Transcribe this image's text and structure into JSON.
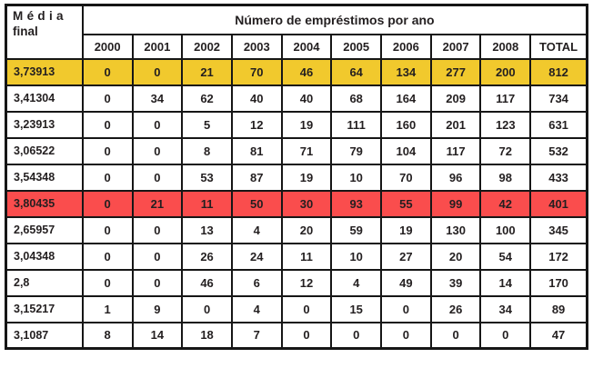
{
  "table": {
    "corner_header": {
      "line1": "Média",
      "line2": "final"
    },
    "group_header": "Número de empréstimos por ano",
    "year_headers": [
      "2000",
      "2001",
      "2002",
      "2003",
      "2004",
      "2005",
      "2006",
      "2007",
      "2008"
    ],
    "total_header": "TOTAL",
    "rows": [
      {
        "media": "3,73913",
        "values": [
          0,
          0,
          21,
          70,
          46,
          64,
          134,
          277,
          200
        ],
        "total": 812,
        "highlight": "yellow"
      },
      {
        "media": "3,41304",
        "values": [
          0,
          34,
          62,
          40,
          40,
          68,
          164,
          209,
          117
        ],
        "total": 734,
        "highlight": "none"
      },
      {
        "media": "3,23913",
        "values": [
          0,
          0,
          5,
          12,
          19,
          111,
          160,
          201,
          123
        ],
        "total": 631,
        "highlight": "none"
      },
      {
        "media": "3,06522",
        "values": [
          0,
          0,
          8,
          81,
          71,
          79,
          104,
          117,
          72
        ],
        "total": 532,
        "highlight": "none"
      },
      {
        "media": "3,54348",
        "values": [
          0,
          0,
          53,
          87,
          19,
          10,
          70,
          96,
          98
        ],
        "total": 433,
        "highlight": "none"
      },
      {
        "media": "3,80435",
        "values": [
          0,
          21,
          11,
          50,
          30,
          93,
          55,
          99,
          42
        ],
        "total": 401,
        "highlight": "red"
      },
      {
        "media": "2,65957",
        "values": [
          0,
          0,
          13,
          4,
          20,
          59,
          19,
          130,
          100
        ],
        "total": 345,
        "highlight": "none"
      },
      {
        "media": "3,04348",
        "values": [
          0,
          0,
          26,
          24,
          11,
          10,
          27,
          20,
          54
        ],
        "total": 172,
        "highlight": "none"
      },
      {
        "media": "2,8",
        "values": [
          0,
          0,
          46,
          6,
          12,
          4,
          49,
          39,
          14
        ],
        "total": 170,
        "highlight": "none"
      },
      {
        "media": "3,15217",
        "values": [
          1,
          9,
          0,
          4,
          0,
          15,
          0,
          26,
          34
        ],
        "total": 89,
        "highlight": "none"
      },
      {
        "media": "3,1087",
        "values": [
          8,
          14,
          18,
          7,
          0,
          0,
          0,
          0,
          0
        ],
        "total": 47,
        "highlight": "none"
      }
    ],
    "colors": {
      "highlight_yellow": "#F1C92D",
      "highlight_red": "#FA4D4D",
      "border": "#161616",
      "text": "#231F20"
    }
  }
}
